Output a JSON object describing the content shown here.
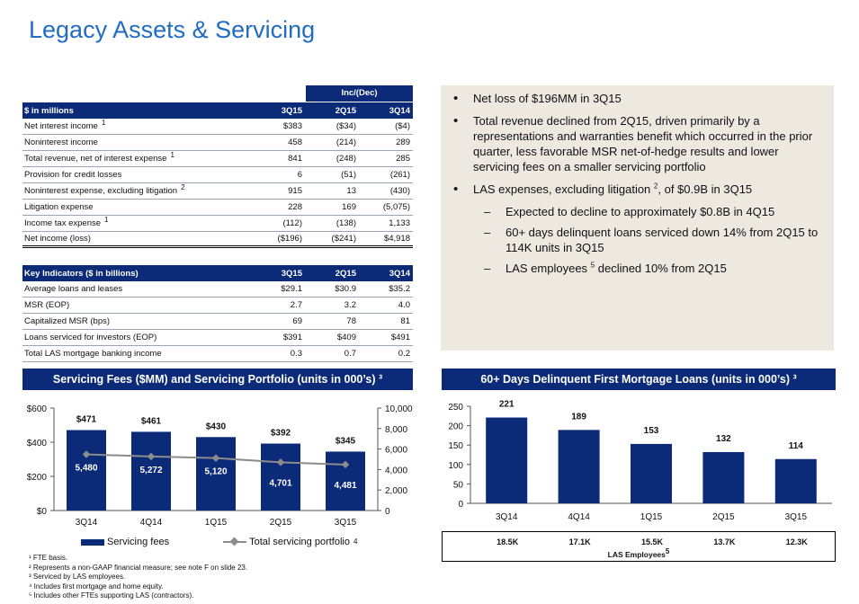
{
  "title": "Legacy Assets & Servicing",
  "inc_header": "Inc/(Dec)",
  "fin_table": {
    "header": {
      "label": "$ in millions",
      "c1": "3Q15",
      "c2": "2Q15",
      "c3": "3Q14"
    },
    "rows": [
      {
        "label": "Net interest income",
        "sup": "1",
        "c1": "$383",
        "c2": "($34)",
        "c3": "($4)"
      },
      {
        "label": "Noninterest income",
        "sup": "",
        "c1": "458",
        "c2": "(214)",
        "c3": "289"
      },
      {
        "label": "Total revenue, net of interest expense",
        "sup": "1",
        "c1": "841",
        "c2": "(248)",
        "c3": "285"
      },
      {
        "label": "Provision for credit losses",
        "sup": "",
        "c1": "6",
        "c2": "(51)",
        "c3": "(261)"
      },
      {
        "label": "Noninterest expense, excluding litigation",
        "sup": "2",
        "c1": "915",
        "c2": "13",
        "c3": "(430)"
      },
      {
        "label": "Litigation expense",
        "sup": "",
        "c1": "228",
        "c2": "169",
        "c3": "(5,075)"
      },
      {
        "label": "Income tax expense",
        "sup": "1",
        "c1": "(112)",
        "c2": "(138)",
        "c3": "1,133"
      },
      {
        "label": "Net income (loss)",
        "sup": "",
        "c1": "($196)",
        "c2": "($241)",
        "c3": "$4,918"
      }
    ]
  },
  "key_table": {
    "header": {
      "label": "Key Indicators ($ in billions)",
      "c1": "3Q15",
      "c2": "2Q15",
      "c3": "3Q14"
    },
    "rows": [
      {
        "label": "Average loans and leases",
        "c1": "$29.1",
        "c2": "$30.9",
        "c3": "$35.2"
      },
      {
        "label": "MSR (EOP)",
        "c1": "2.7",
        "c2": "3.2",
        "c3": "4.0"
      },
      {
        "label": "Capitalized MSR (bps)",
        "c1": "69",
        "c2": "78",
        "c3": "81"
      },
      {
        "label": "Loans serviced for investors (EOP)",
        "c1": "$391",
        "c2": "$409",
        "c3": "$491"
      },
      {
        "label": "Total LAS mortgage banking income",
        "c1": "0.3",
        "c2": "0.7",
        "c3": "0.2"
      }
    ]
  },
  "bullets": {
    "b1": "Net loss of $196MM in 3Q15",
    "b2": "Total revenue declined from 2Q15, driven primarily by a representations and warranties benefit which occurred in the prior quarter, less favorable MSR net-of-hedge results and lower servicing fees on a smaller servicing portfolio",
    "b3_pre": "LAS expenses, excluding litigation ",
    "b3_sup": "2",
    "b3_post": ", of $0.9B in 3Q15",
    "s1": "Expected to decline to approximately $0.8B in 4Q15",
    "s2": "60+ days delinquent loans serviced down 14% from 2Q15 to 114K units in 3Q15",
    "s3_pre": "LAS employees ",
    "s3_sup": "5",
    "s3_post": " declined 10% from 2Q15"
  },
  "left_chart_title": "Servicing Fees ($MM) and Servicing Portfolio (units in 000’s) ³",
  "right_chart_title": "60+ Days Delinquent First Mortgage Loans (units in 000’s) ³",
  "chart_data": [
    {
      "type": "bar",
      "categories": [
        "3Q14",
        "4Q14",
        "1Q15",
        "2Q15",
        "3Q15"
      ],
      "series": [
        {
          "name": "Servicing fees",
          "type": "bar",
          "axis": "left",
          "values": [
            471,
            461,
            430,
            392,
            345
          ],
          "labels": [
            "$471",
            "$461",
            "$430",
            "$392",
            "$345"
          ]
        },
        {
          "name": "Total servicing portfolio",
          "type": "line",
          "axis": "right",
          "values": [
            5480,
            5272,
            5120,
            4701,
            4481
          ],
          "labels": [
            "5,480",
            "5,272",
            "5,120",
            "4,701",
            "4,481"
          ]
        }
      ],
      "y_left_ticks": [
        "$0",
        "$200",
        "$400",
        "$600"
      ],
      "y_left_range": [
        0,
        600
      ],
      "y_right_ticks": [
        "0",
        "2,000",
        "4,000",
        "6,000",
        "8,000",
        "10,000"
      ],
      "y_right_range": [
        0,
        10000
      ],
      "legend_sup": "4",
      "colors": {
        "bar": "#0b2a77",
        "line": "#8c8c8c"
      }
    },
    {
      "type": "bar",
      "categories": [
        "3Q14",
        "4Q14",
        "1Q15",
        "2Q15",
        "3Q15"
      ],
      "values": [
        221,
        189,
        153,
        132,
        114
      ],
      "labels": [
        "221",
        "189",
        "153",
        "132",
        "114"
      ],
      "y_ticks": [
        "0",
        "50",
        "100",
        "150",
        "200",
        "250"
      ],
      "ylim": [
        0,
        250
      ],
      "colors": {
        "bar": "#0b2a77"
      }
    }
  ],
  "employees": {
    "values": [
      "18.5K",
      "17.1K",
      "15.5K",
      "13.7K",
      "12.3K"
    ],
    "label": "LAS Employees",
    "sup": "5"
  },
  "footnotes": [
    "¹ FTE basis.",
    "² Represents a non-GAAP financial measure; see note F on slide 23.",
    "³ Serviced by LAS employees.",
    "⁴ Includes first mortgage and home equity.",
    "⁵ Includes other FTEs supporting LAS (contractors)."
  ]
}
